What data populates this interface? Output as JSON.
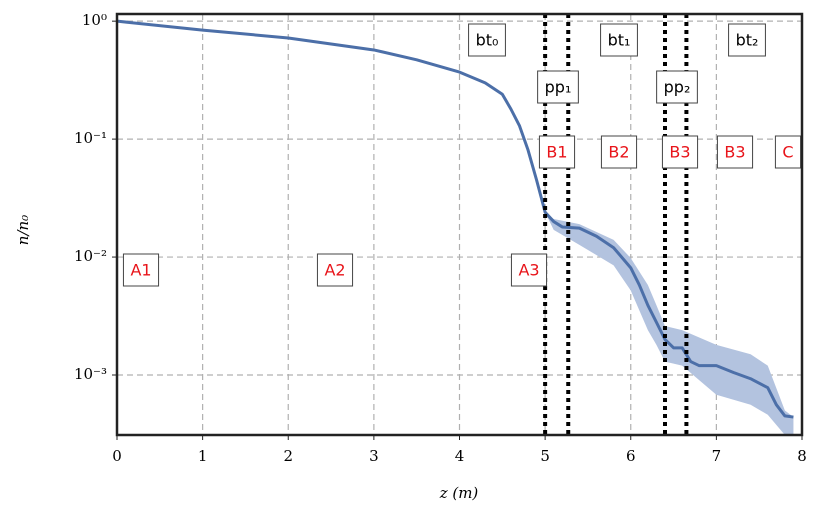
{
  "chart_data": {
    "type": "line",
    "xlabel": "z (m)",
    "ylabel": "n/n₀",
    "xlim": [
      0,
      8.0
    ],
    "ylim": [
      0.00031,
      1.15
    ],
    "log_y": true,
    "grid": true,
    "xticks": [
      0,
      1,
      2,
      3,
      4,
      5,
      6,
      7,
      8
    ],
    "yticks": [
      {
        "value": 1,
        "label": "10⁰"
      },
      {
        "value": 0.1,
        "label": "10⁻¹"
      },
      {
        "value": 0.01,
        "label": "10⁻²"
      },
      {
        "value": 0.001,
        "label": "10⁻³"
      }
    ],
    "series": [
      {
        "color": "#4c6fa8",
        "x": [
          0,
          1,
          2,
          3,
          3.5,
          4,
          4.3,
          4.5,
          4.6,
          4.7,
          4.8,
          4.9,
          5.0,
          5.1,
          5.2,
          5.4,
          5.6,
          5.8,
          6.0,
          6.1,
          6.2,
          6.3,
          6.4,
          6.5,
          6.6,
          6.7,
          6.8,
          7.0,
          7.2,
          7.4,
          7.6,
          7.7,
          7.8,
          7.9
        ],
        "values": [
          1.0,
          0.84,
          0.72,
          0.57,
          0.47,
          0.37,
          0.3,
          0.24,
          0.18,
          0.13,
          0.081,
          0.045,
          0.024,
          0.02,
          0.018,
          0.0176,
          0.015,
          0.012,
          0.0081,
          0.0058,
          0.0039,
          0.0028,
          0.002,
          0.0017,
          0.0017,
          0.0013,
          0.0012,
          0.0012,
          0.00105,
          0.00093,
          0.00078,
          0.00056,
          0.00045,
          0.00044
        ]
      }
    ],
    "band": {
      "color": "#b3c3df",
      "x": [
        5.0,
        5.1,
        5.4,
        5.8,
        6.0,
        6.2,
        6.3,
        6.4,
        6.6,
        7.0,
        7.4,
        7.6,
        7.8,
        7.9
      ],
      "upper": [
        0.024,
        0.021,
        0.019,
        0.014,
        0.0098,
        0.0058,
        0.0039,
        0.0026,
        0.0024,
        0.0018,
        0.0015,
        0.0012,
        0.0005,
        0.00044
      ],
      "lower": [
        0.024,
        0.017,
        0.0127,
        0.0085,
        0.0052,
        0.0024,
        0.0018,
        0.0013,
        0.0012,
        0.00068,
        0.00056,
        0.00046,
        0.00031,
        0.00031
      ]
    },
    "vlines": [
      5.0,
      5.27,
      6.4,
      6.65
    ],
    "annotations": [
      {
        "text": "bt₀",
        "color": "#000000"
      },
      {
        "text": "bt₁",
        "color": "#000000"
      },
      {
        "text": "bt₂",
        "color": "#000000"
      },
      {
        "text": "pp₁",
        "color": "#000000"
      },
      {
        "text": "pp₂",
        "color": "#000000"
      },
      {
        "text": "B1",
        "color": "#e8141a"
      },
      {
        "text": "B2",
        "color": "#e8141a"
      },
      {
        "text": "B3",
        "color": "#e8141a"
      },
      {
        "text": "B3",
        "color": "#e8141a"
      },
      {
        "text": "C",
        "color": "#e8141a"
      },
      {
        "text": "A1",
        "color": "#e8141a"
      },
      {
        "text": "A2",
        "color": "#e8141a"
      },
      {
        "text": "A3",
        "color": "#e8141a"
      }
    ]
  }
}
